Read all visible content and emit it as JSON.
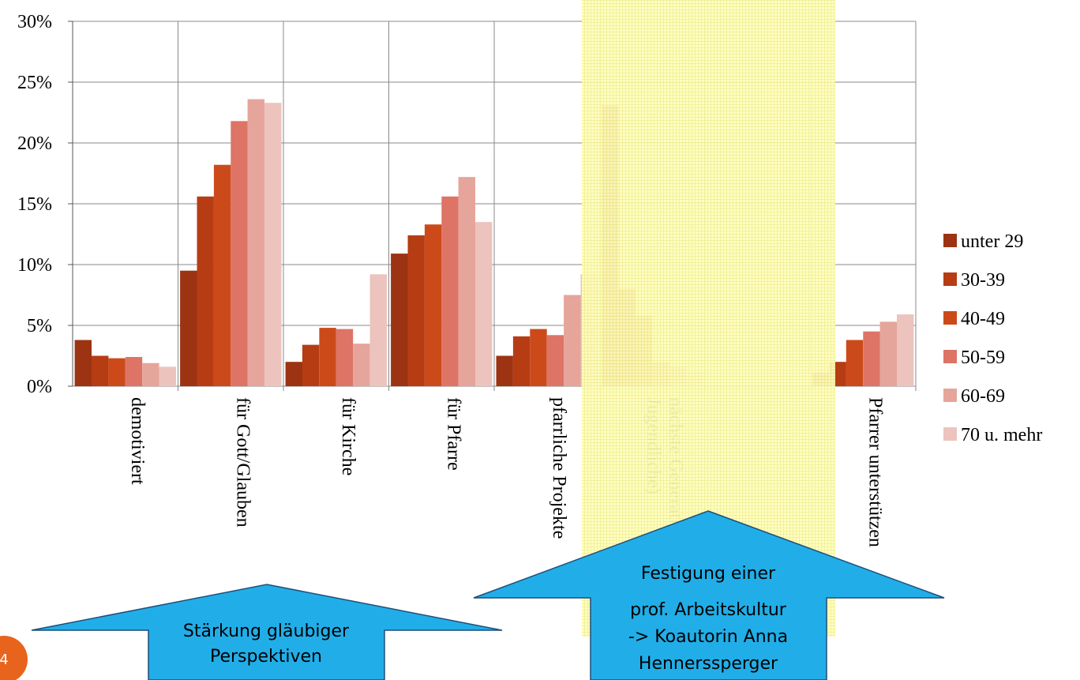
{
  "chart_data": {
    "type": "bar",
    "ylim": [
      0,
      30
    ],
    "yticks": [
      "0%",
      "5%",
      "10%",
      "15%",
      "20%",
      "25%",
      "30%"
    ],
    "grid": true,
    "legend_position": "right",
    "categories": [
      [
        "demotiviert"
      ],
      [
        "für Gott/Glauben"
      ],
      [
        "für Kirche"
      ],
      [
        "für Pfarre"
      ],
      [
        "pfarrliche Projekte"
      ],
      [
        "nächste Generation (Kinder,",
        "Jugendliche)"
      ],
      [],
      [
        "Pfarrer unterstützen"
      ]
    ],
    "series": [
      {
        "name": "unter 29",
        "color": "#9c3312",
        "values": [
          3.8,
          9.5,
          2.0,
          10.9,
          2.5,
          23.1,
          null,
          1.1
        ]
      },
      {
        "name": "30-39",
        "color": "#b63c14",
        "values": [
          2.5,
          15.6,
          3.4,
          12.4,
          4.1,
          8.0,
          null,
          2.0
        ]
      },
      {
        "name": "40-49",
        "color": "#cc4a1a",
        "values": [
          2.3,
          18.2,
          4.8,
          13.3,
          4.7,
          5.8,
          null,
          3.8
        ]
      },
      {
        "name": "50-59",
        "color": "#dd7466",
        "values": [
          2.4,
          21.8,
          4.7,
          15.6,
          4.2,
          2.0,
          null,
          4.5
        ]
      },
      {
        "name": "60-69",
        "color": "#e6a59a",
        "values": [
          1.9,
          23.6,
          3.5,
          17.2,
          7.5,
          1.6,
          null,
          5.3
        ]
      },
      {
        "name": "70 u. mehr",
        "color": "#ecc3bd",
        "values": [
          1.6,
          23.3,
          9.2,
          13.5,
          9.2,
          1.1,
          null,
          5.9
        ]
      }
    ]
  },
  "callouts": {
    "left": [
      "Stärkung gläubiger",
      "Perspektiven"
    ],
    "right": [
      "Festigung einer",
      "prof. Arbeitskultur",
      "-> Koautorin Anna",
      "Hennerssperger"
    ]
  },
  "slide_number": "4",
  "colors": {
    "callout_fill": "#21aee8",
    "callout_stroke": "#1e4f7a",
    "highlight_fill": "#ffffb8",
    "slide_badge": "#e8641c",
    "grid": "#888888"
  }
}
